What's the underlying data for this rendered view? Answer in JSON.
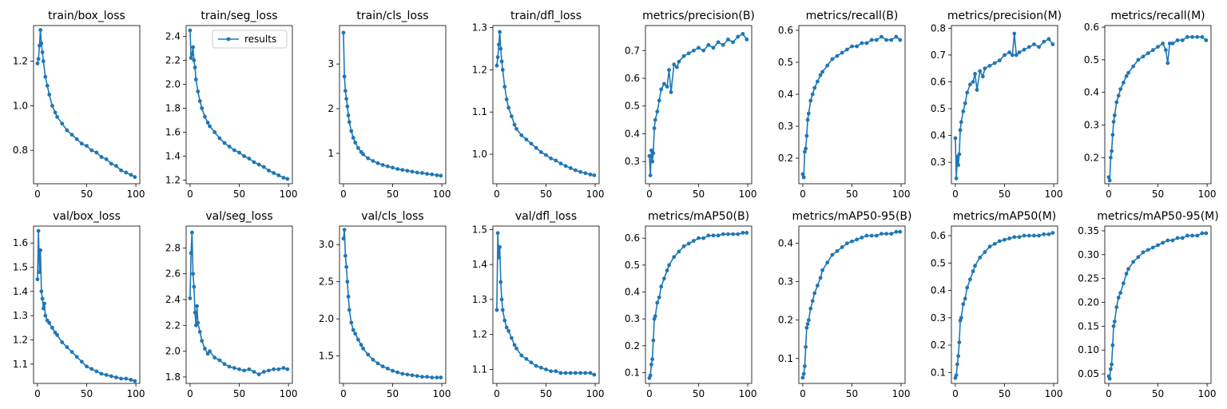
{
  "series_color": "#1f77b4",
  "legend": {
    "label": "results",
    "panel_index": 1
  },
  "chart_data": [
    {
      "type": "line",
      "title": "train/box_loss",
      "xlim": [
        -4,
        104
      ],
      "ylim": [
        0.65,
        1.36
      ],
      "xticks": [
        0,
        50,
        100
      ],
      "yticks": [
        0.8,
        1.0,
        1.2
      ],
      "ytick_labels": [
        "0.8",
        "1.0",
        "1.2"
      ],
      "x": [
        0,
        1,
        2,
        3,
        4,
        5,
        6,
        8,
        10,
        12,
        15,
        18,
        20,
        25,
        30,
        35,
        40,
        45,
        50,
        55,
        60,
        65,
        70,
        75,
        80,
        85,
        90,
        95,
        99
      ],
      "y": [
        1.19,
        1.21,
        1.27,
        1.34,
        1.28,
        1.24,
        1.2,
        1.13,
        1.09,
        1.05,
        1.0,
        0.97,
        0.95,
        0.92,
        0.89,
        0.87,
        0.85,
        0.83,
        0.82,
        0.8,
        0.79,
        0.77,
        0.76,
        0.74,
        0.73,
        0.71,
        0.7,
        0.69,
        0.68
      ]
    },
    {
      "type": "line",
      "title": "train/seg_loss",
      "xlim": [
        -4,
        104
      ],
      "ylim": [
        1.17,
        2.49
      ],
      "xticks": [
        0,
        50,
        100
      ],
      "yticks": [
        1.2,
        1.4,
        1.6,
        1.8,
        2.0,
        2.2,
        2.4
      ],
      "ytick_labels": [
        "1.2",
        "1.4",
        "1.6",
        "1.8",
        "2.0",
        "2.2",
        "2.4"
      ],
      "x": [
        0,
        1,
        2,
        3,
        4,
        5,
        6,
        8,
        10,
        12,
        15,
        18,
        20,
        25,
        30,
        35,
        40,
        45,
        50,
        55,
        60,
        65,
        70,
        75,
        80,
        85,
        90,
        95,
        99
      ],
      "y": [
        2.45,
        2.22,
        2.25,
        2.31,
        2.2,
        2.14,
        2.04,
        1.94,
        1.86,
        1.8,
        1.73,
        1.68,
        1.65,
        1.6,
        1.55,
        1.51,
        1.48,
        1.45,
        1.43,
        1.4,
        1.38,
        1.35,
        1.33,
        1.31,
        1.28,
        1.26,
        1.24,
        1.22,
        1.21
      ]
    },
    {
      "type": "line",
      "title": "train/cls_loss",
      "xlim": [
        -4,
        104
      ],
      "ylim": [
        0.32,
        3.86
      ],
      "xticks": [
        0,
        50,
        100
      ],
      "yticks": [
        1,
        2,
        3
      ],
      "ytick_labels": [
        "1",
        "2",
        "3"
      ],
      "x": [
        0,
        1,
        2,
        3,
        4,
        5,
        6,
        8,
        10,
        12,
        15,
        18,
        20,
        25,
        30,
        35,
        40,
        45,
        50,
        55,
        60,
        65,
        70,
        75,
        80,
        85,
        90,
        95,
        99
      ],
      "y": [
        3.7,
        2.72,
        2.4,
        2.22,
        2.05,
        1.85,
        1.7,
        1.5,
        1.35,
        1.24,
        1.12,
        1.03,
        0.98,
        0.89,
        0.83,
        0.78,
        0.74,
        0.71,
        0.68,
        0.65,
        0.63,
        0.61,
        0.59,
        0.57,
        0.56,
        0.54,
        0.53,
        0.51,
        0.5
      ]
    },
    {
      "type": "line",
      "title": "train/dfl_loss",
      "xlim": [
        -4,
        104
      ],
      "ylim": [
        0.93,
        1.305
      ],
      "xticks": [
        0,
        50,
        100
      ],
      "yticks": [
        1.0,
        1.1,
        1.2,
        1.3
      ],
      "ytick_labels": [
        "1.0",
        "1.1",
        "1.2",
        "1.3"
      ],
      "x": [
        0,
        1,
        2,
        3,
        4,
        5,
        6,
        8,
        10,
        12,
        15,
        18,
        20,
        25,
        30,
        35,
        40,
        45,
        50,
        55,
        60,
        65,
        70,
        75,
        80,
        85,
        90,
        95,
        99
      ],
      "y": [
        1.21,
        1.23,
        1.26,
        1.29,
        1.25,
        1.22,
        1.2,
        1.16,
        1.13,
        1.11,
        1.09,
        1.07,
        1.06,
        1.045,
        1.035,
        1.025,
        1.015,
        1.005,
        0.998,
        0.99,
        0.985,
        0.978,
        0.972,
        0.967,
        0.962,
        0.958,
        0.955,
        0.952,
        0.95
      ]
    },
    {
      "type": "line",
      "title": "metrics/precision(B)",
      "xlim": [
        -4,
        104
      ],
      "ylim": [
        0.22,
        0.79
      ],
      "xticks": [
        0,
        50,
        100
      ],
      "yticks": [
        0.3,
        0.4,
        0.5,
        0.6,
        0.7
      ],
      "ytick_labels": [
        "0.3",
        "0.4",
        "0.5",
        "0.6",
        "0.7"
      ],
      "x": [
        0,
        1,
        2,
        3,
        4,
        5,
        6,
        8,
        10,
        12,
        15,
        18,
        20,
        22,
        25,
        28,
        30,
        35,
        40,
        45,
        50,
        55,
        60,
        65,
        70,
        75,
        80,
        85,
        90,
        95,
        99
      ],
      "y": [
        0.32,
        0.25,
        0.34,
        0.3,
        0.33,
        0.42,
        0.45,
        0.48,
        0.52,
        0.56,
        0.58,
        0.57,
        0.63,
        0.55,
        0.65,
        0.64,
        0.66,
        0.68,
        0.69,
        0.7,
        0.71,
        0.7,
        0.72,
        0.71,
        0.73,
        0.72,
        0.74,
        0.73,
        0.75,
        0.76,
        0.74
      ]
    },
    {
      "type": "line",
      "title": "metrics/recall(B)",
      "xlim": [
        -4,
        104
      ],
      "ylim": [
        0.12,
        0.615
      ],
      "xticks": [
        0,
        50,
        100
      ],
      "yticks": [
        0.2,
        0.3,
        0.4,
        0.5,
        0.6
      ],
      "ytick_labels": [
        "0.2",
        "0.3",
        "0.4",
        "0.5",
        "0.6"
      ],
      "x": [
        0,
        1,
        2,
        3,
        4,
        5,
        6,
        8,
        10,
        12,
        15,
        18,
        20,
        25,
        30,
        35,
        40,
        45,
        50,
        55,
        60,
        65,
        70,
        75,
        80,
        85,
        90,
        95,
        99
      ],
      "y": [
        0.15,
        0.14,
        0.22,
        0.23,
        0.27,
        0.32,
        0.34,
        0.38,
        0.4,
        0.42,
        0.44,
        0.46,
        0.47,
        0.49,
        0.51,
        0.52,
        0.53,
        0.54,
        0.55,
        0.55,
        0.56,
        0.56,
        0.57,
        0.57,
        0.58,
        0.57,
        0.57,
        0.58,
        0.57
      ]
    },
    {
      "type": "line",
      "title": "metrics/precision(M)",
      "xlim": [
        -4,
        104
      ],
      "ylim": [
        0.22,
        0.81
      ],
      "xticks": [
        0,
        50,
        100
      ],
      "yticks": [
        0.3,
        0.4,
        0.5,
        0.6,
        0.7,
        0.8
      ],
      "ytick_labels": [
        "0.3",
        "0.4",
        "0.5",
        "0.6",
        "0.7",
        "0.8"
      ],
      "x": [
        0,
        1,
        2,
        3,
        4,
        5,
        6,
        8,
        10,
        12,
        15,
        18,
        20,
        22,
        25,
        28,
        30,
        35,
        40,
        45,
        50,
        55,
        58,
        60,
        62,
        65,
        70,
        75,
        80,
        85,
        90,
        95,
        99
      ],
      "y": [
        0.39,
        0.24,
        0.32,
        0.29,
        0.33,
        0.42,
        0.45,
        0.49,
        0.52,
        0.56,
        0.59,
        0.6,
        0.63,
        0.57,
        0.64,
        0.62,
        0.65,
        0.66,
        0.67,
        0.68,
        0.7,
        0.71,
        0.7,
        0.78,
        0.7,
        0.71,
        0.72,
        0.73,
        0.74,
        0.73,
        0.75,
        0.76,
        0.74
      ]
    },
    {
      "type": "line",
      "title": "metrics/recall(M)",
      "xlim": [
        -4,
        104
      ],
      "ylim": [
        0.12,
        0.605
      ],
      "xticks": [
        0,
        50,
        100
      ],
      "yticks": [
        0.2,
        0.3,
        0.4,
        0.5,
        0.6
      ],
      "ytick_labels": [
        "0.2",
        "0.3",
        "0.4",
        "0.5",
        "0.6"
      ],
      "x": [
        0,
        1,
        2,
        3,
        4,
        5,
        6,
        8,
        10,
        12,
        15,
        18,
        20,
        25,
        30,
        35,
        40,
        45,
        50,
        55,
        58,
        60,
        62,
        65,
        70,
        75,
        80,
        85,
        90,
        95,
        99
      ],
      "y": [
        0.14,
        0.13,
        0.2,
        0.22,
        0.27,
        0.31,
        0.33,
        0.37,
        0.39,
        0.41,
        0.43,
        0.45,
        0.46,
        0.48,
        0.5,
        0.51,
        0.52,
        0.53,
        0.54,
        0.55,
        0.53,
        0.49,
        0.55,
        0.55,
        0.56,
        0.56,
        0.57,
        0.57,
        0.57,
        0.57,
        0.56
      ]
    },
    {
      "type": "line",
      "title": "val/box_loss",
      "xlim": [
        -4,
        104
      ],
      "ylim": [
        1.02,
        1.67
      ],
      "xticks": [
        0,
        50,
        100
      ],
      "yticks": [
        1.1,
        1.2,
        1.3,
        1.4,
        1.5,
        1.6
      ],
      "ytick_labels": [
        "1.1",
        "1.2",
        "1.3",
        "1.4",
        "1.5",
        "1.6"
      ],
      "x": [
        0,
        1,
        2,
        3,
        4,
        5,
        6,
        7,
        8,
        10,
        12,
        15,
        18,
        20,
        25,
        30,
        35,
        40,
        45,
        50,
        55,
        60,
        65,
        70,
        75,
        80,
        85,
        90,
        95,
        99
      ],
      "y": [
        1.45,
        1.65,
        1.48,
        1.57,
        1.4,
        1.37,
        1.33,
        1.35,
        1.3,
        1.28,
        1.27,
        1.25,
        1.23,
        1.22,
        1.19,
        1.17,
        1.15,
        1.13,
        1.11,
        1.09,
        1.08,
        1.07,
        1.06,
        1.055,
        1.05,
        1.045,
        1.04,
        1.04,
        1.035,
        1.03
      ]
    },
    {
      "type": "line",
      "title": "val/seg_loss",
      "xlim": [
        -4,
        104
      ],
      "ylim": [
        1.75,
        2.97
      ],
      "xticks": [
        0,
        50,
        100
      ],
      "yticks": [
        1.8,
        2.0,
        2.2,
        2.4,
        2.6,
        2.8
      ],
      "ytick_labels": [
        "1.8",
        "2.0",
        "2.2",
        "2.4",
        "2.6",
        "2.8"
      ],
      "x": [
        0,
        1,
        2,
        3,
        4,
        5,
        6,
        7,
        8,
        10,
        12,
        15,
        18,
        20,
        25,
        30,
        35,
        40,
        45,
        50,
        55,
        60,
        65,
        70,
        75,
        80,
        85,
        90,
        95,
        99
      ],
      "y": [
        2.41,
        2.76,
        2.92,
        2.6,
        2.5,
        2.3,
        2.2,
        2.35,
        2.22,
        2.15,
        2.08,
        2.02,
        1.98,
        2.0,
        1.95,
        1.93,
        1.9,
        1.88,
        1.87,
        1.86,
        1.85,
        1.86,
        1.84,
        1.82,
        1.84,
        1.85,
        1.86,
        1.86,
        1.87,
        1.86
      ]
    },
    {
      "type": "line",
      "title": "val/cls_loss",
      "xlim": [
        -4,
        104
      ],
      "ylim": [
        1.13,
        3.25
      ],
      "xticks": [
        0,
        50,
        100
      ],
      "yticks": [
        1.5,
        2.0,
        2.5,
        3.0
      ],
      "ytick_labels": [
        "1.5",
        "2.0",
        "2.5",
        "3.0"
      ],
      "x": [
        0,
        1,
        2,
        3,
        4,
        5,
        6,
        8,
        10,
        12,
        15,
        18,
        20,
        25,
        30,
        35,
        40,
        45,
        50,
        55,
        60,
        65,
        70,
        75,
        80,
        85,
        90,
        95,
        99
      ],
      "y": [
        3.08,
        3.2,
        2.85,
        2.7,
        2.5,
        2.3,
        2.12,
        1.95,
        1.85,
        1.8,
        1.72,
        1.65,
        1.6,
        1.52,
        1.45,
        1.4,
        1.36,
        1.33,
        1.3,
        1.28,
        1.26,
        1.25,
        1.24,
        1.23,
        1.22,
        1.22,
        1.21,
        1.21,
        1.21
      ]
    },
    {
      "type": "line",
      "title": "val/dfl_loss",
      "xlim": [
        -4,
        104
      ],
      "ylim": [
        1.06,
        1.51
      ],
      "xticks": [
        0,
        50,
        100
      ],
      "yticks": [
        1.1,
        1.2,
        1.3,
        1.4,
        1.5
      ],
      "ytick_labels": [
        "1.1",
        "1.2",
        "1.3",
        "1.4",
        "1.5"
      ],
      "x": [
        0,
        1,
        2,
        3,
        4,
        5,
        6,
        8,
        10,
        12,
        15,
        18,
        20,
        25,
        30,
        35,
        40,
        45,
        50,
        55,
        60,
        65,
        70,
        75,
        80,
        85,
        90,
        95,
        99
      ],
      "y": [
        1.27,
        1.49,
        1.42,
        1.45,
        1.35,
        1.3,
        1.27,
        1.24,
        1.22,
        1.21,
        1.19,
        1.17,
        1.16,
        1.14,
        1.13,
        1.12,
        1.11,
        1.105,
        1.1,
        1.095,
        1.095,
        1.09,
        1.09,
        1.09,
        1.09,
        1.09,
        1.09,
        1.09,
        1.085
      ]
    },
    {
      "type": "line",
      "title": "metrics/mAP50(B)",
      "xlim": [
        -4,
        104
      ],
      "ylim": [
        0.06,
        0.645
      ],
      "xticks": [
        0,
        50,
        100
      ],
      "yticks": [
        0.1,
        0.2,
        0.3,
        0.4,
        0.5,
        0.6
      ],
      "ytick_labels": [
        "0.1",
        "0.2",
        "0.3",
        "0.4",
        "0.5",
        "0.6"
      ],
      "x": [
        0,
        1,
        2,
        3,
        4,
        5,
        6,
        8,
        10,
        12,
        15,
        18,
        20,
        25,
        30,
        35,
        40,
        45,
        50,
        55,
        60,
        65,
        70,
        75,
        80,
        85,
        90,
        95,
        99
      ],
      "y": [
        0.08,
        0.09,
        0.13,
        0.15,
        0.22,
        0.3,
        0.31,
        0.36,
        0.38,
        0.42,
        0.45,
        0.48,
        0.5,
        0.53,
        0.55,
        0.57,
        0.58,
        0.59,
        0.6,
        0.6,
        0.61,
        0.61,
        0.61,
        0.615,
        0.615,
        0.615,
        0.615,
        0.62,
        0.62
      ]
    },
    {
      "type": "line",
      "title": "metrics/mAP50-95(B)",
      "xlim": [
        -4,
        104
      ],
      "ylim": [
        0.035,
        0.445
      ],
      "xticks": [
        0,
        50,
        100
      ],
      "yticks": [
        0.1,
        0.2,
        0.3,
        0.4
      ],
      "ytick_labels": [
        "0.1",
        "0.2",
        "0.3",
        "0.4"
      ],
      "x": [
        0,
        1,
        2,
        3,
        4,
        5,
        6,
        8,
        10,
        12,
        15,
        18,
        20,
        25,
        30,
        35,
        40,
        45,
        50,
        55,
        60,
        65,
        70,
        75,
        80,
        85,
        90,
        95,
        99
      ],
      "y": [
        0.05,
        0.06,
        0.08,
        0.13,
        0.18,
        0.19,
        0.2,
        0.23,
        0.25,
        0.27,
        0.29,
        0.31,
        0.33,
        0.35,
        0.37,
        0.38,
        0.39,
        0.4,
        0.405,
        0.41,
        0.415,
        0.42,
        0.42,
        0.42,
        0.425,
        0.425,
        0.425,
        0.43,
        0.43
      ]
    },
    {
      "type": "line",
      "title": "metrics/mAP50(M)",
      "xlim": [
        -4,
        104
      ],
      "ylim": [
        0.06,
        0.635
      ],
      "xticks": [
        0,
        50,
        100
      ],
      "yticks": [
        0.1,
        0.2,
        0.3,
        0.4,
        0.5,
        0.6
      ],
      "ytick_labels": [
        "0.1",
        "0.2",
        "0.3",
        "0.4",
        "0.5",
        "0.6"
      ],
      "x": [
        0,
        1,
        2,
        3,
        4,
        5,
        6,
        8,
        10,
        12,
        15,
        18,
        20,
        25,
        30,
        35,
        40,
        45,
        50,
        55,
        60,
        65,
        70,
        75,
        80,
        85,
        90,
        95,
        99
      ],
      "y": [
        0.08,
        0.09,
        0.13,
        0.16,
        0.21,
        0.29,
        0.3,
        0.35,
        0.37,
        0.41,
        0.44,
        0.47,
        0.49,
        0.52,
        0.54,
        0.56,
        0.57,
        0.58,
        0.585,
        0.59,
        0.595,
        0.595,
        0.6,
        0.6,
        0.6,
        0.6,
        0.605,
        0.605,
        0.61
      ]
    },
    {
      "type": "line",
      "title": "metrics/mAP50-95(M)",
      "xlim": [
        -4,
        104
      ],
      "ylim": [
        0.03,
        0.36
      ],
      "xticks": [
        0,
        50,
        100
      ],
      "yticks": [
        0.05,
        0.1,
        0.15,
        0.2,
        0.25,
        0.3,
        0.35
      ],
      "ytick_labels": [
        "0.05",
        "0.10",
        "0.15",
        "0.20",
        "0.25",
        "0.30",
        "0.35"
      ],
      "x": [
        0,
        1,
        2,
        3,
        4,
        5,
        6,
        8,
        10,
        12,
        15,
        18,
        20,
        25,
        30,
        35,
        40,
        45,
        50,
        55,
        60,
        65,
        70,
        75,
        80,
        85,
        90,
        95,
        99
      ],
      "y": [
        0.045,
        0.04,
        0.06,
        0.07,
        0.11,
        0.15,
        0.16,
        0.19,
        0.21,
        0.22,
        0.24,
        0.26,
        0.27,
        0.285,
        0.295,
        0.305,
        0.31,
        0.315,
        0.32,
        0.325,
        0.33,
        0.33,
        0.335,
        0.335,
        0.34,
        0.34,
        0.34,
        0.345,
        0.345
      ]
    }
  ]
}
